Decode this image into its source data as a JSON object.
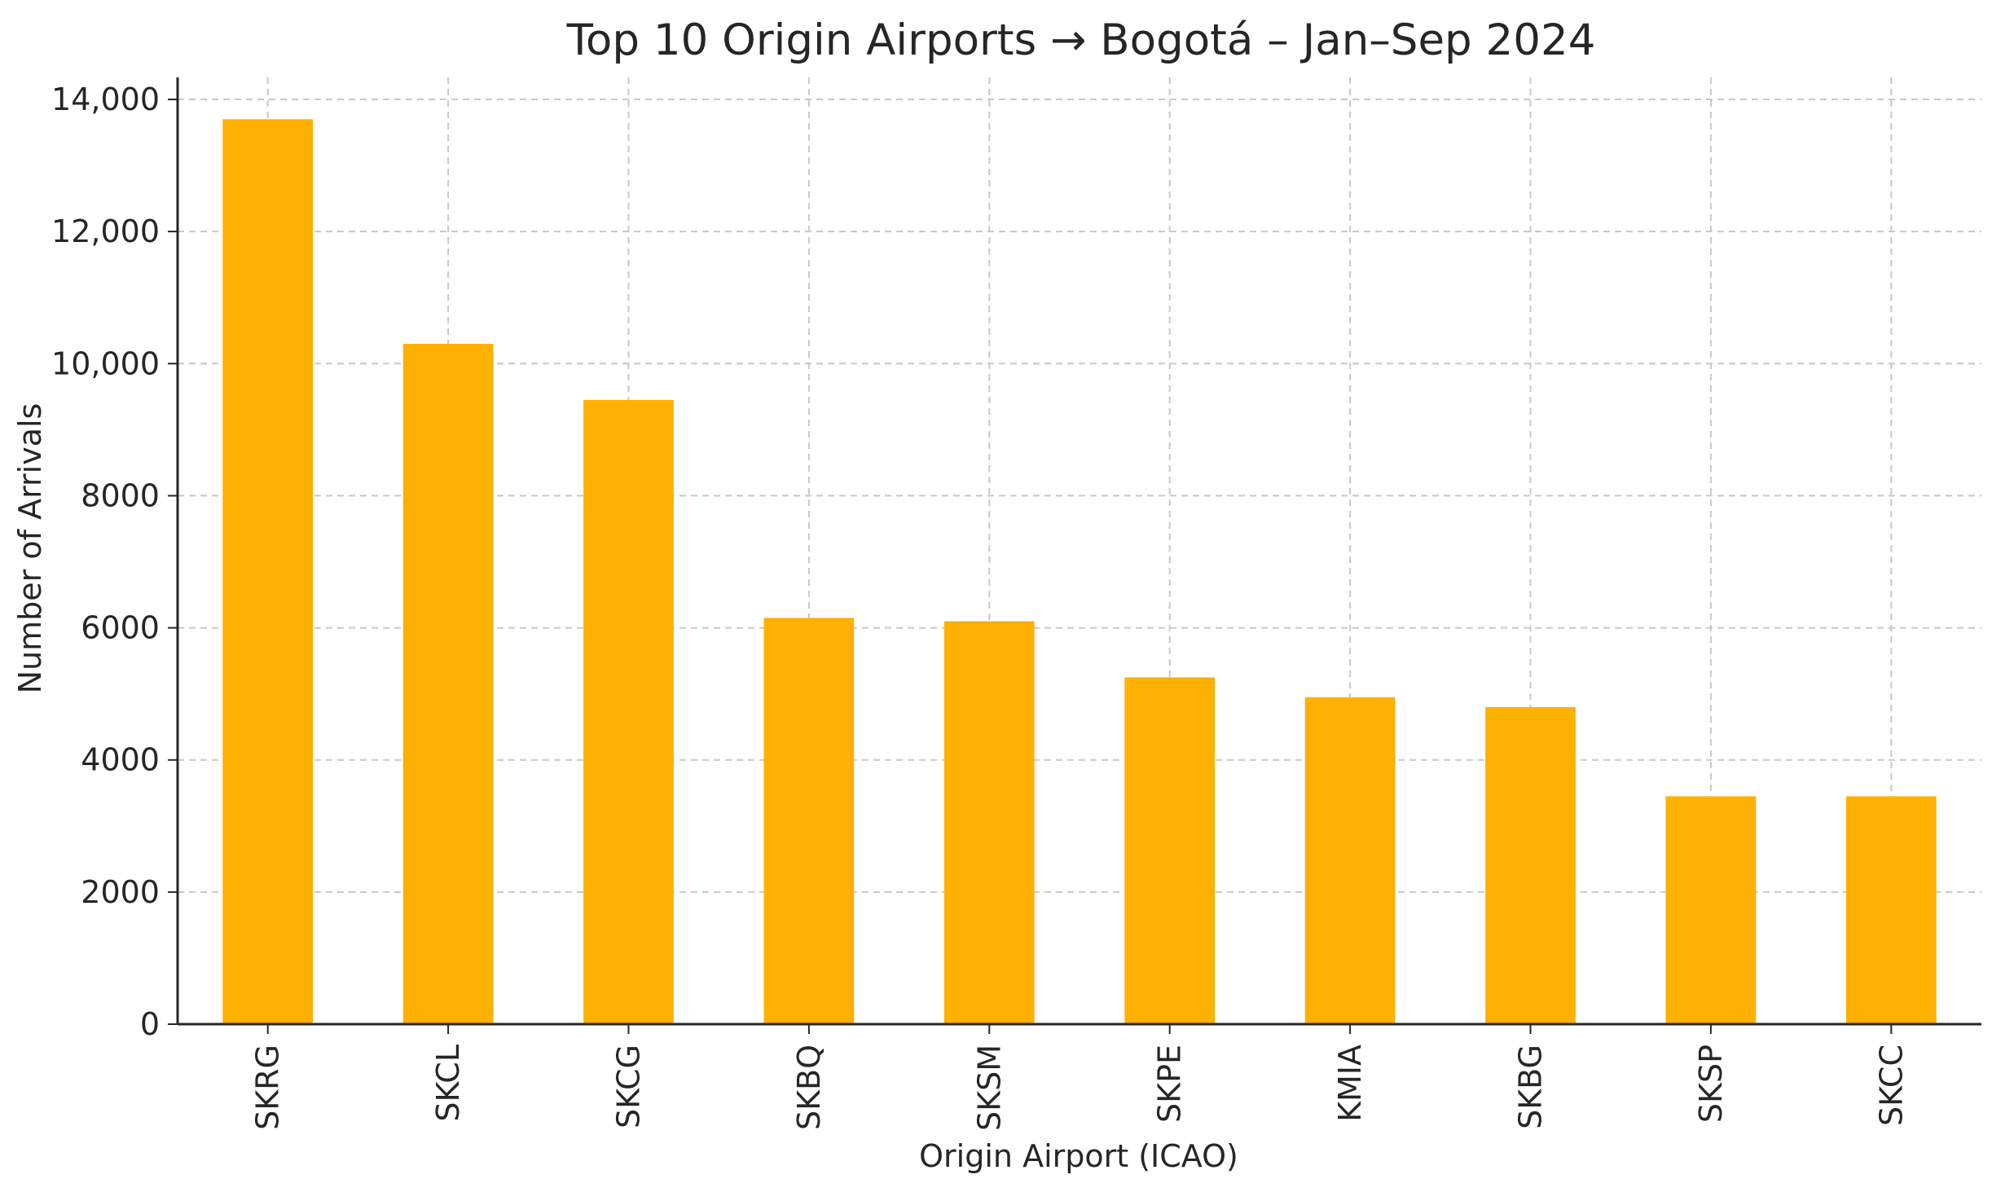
{
  "chart_data": {
    "type": "bar",
    "title": "Top 10 Origin Airports → Bogotá – Jan–Sep 2024",
    "xlabel": "Origin Airport (ICAO)",
    "ylabel": "Number of Arrivals",
    "categories": [
      "SKRG",
      "SKCL",
      "SKCG",
      "SKBQ",
      "SKSM",
      "SKPE",
      "KMIA",
      "SKBG",
      "SKSP",
      "SKCC"
    ],
    "values": [
      13700,
      10300,
      9450,
      6150,
      6100,
      5250,
      4950,
      4800,
      3450,
      3450
    ],
    "ylim": [
      0,
      14000
    ],
    "yticks": [
      0,
      2000,
      4000,
      6000,
      8000,
      10000,
      12000,
      14000
    ],
    "ytick_labels": [
      "0",
      "2000",
      "4000",
      "6000",
      "8000",
      "10,000",
      "12,000",
      "14,000"
    ],
    "grid": true,
    "legend": "none",
    "bar_color": "#FFB000"
  }
}
